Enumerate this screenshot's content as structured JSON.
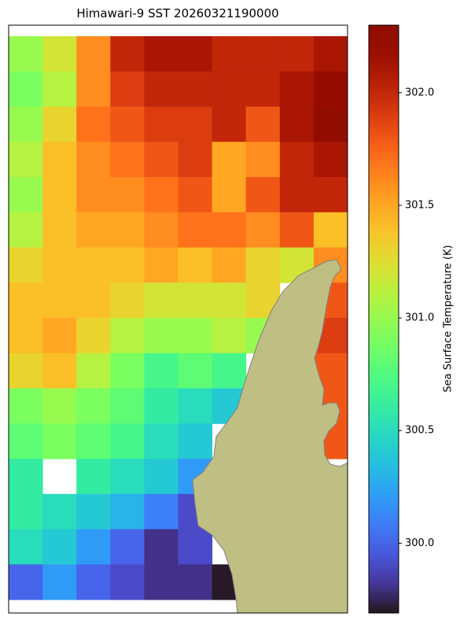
{
  "chart_data": {
    "type": "heatmap",
    "title": "Himawari-9 SST 20260321190000",
    "colorbar_label": "Sea Surface Temperature (K)",
    "colormap": "turbo",
    "clim": [
      299.69,
      302.3
    ],
    "cticks": [
      {
        "value": 300,
        "label": "300.0"
      },
      {
        "value": 300.5,
        "label": "300.5"
      },
      {
        "value": 301,
        "label": "301.0"
      },
      {
        "value": 301.5,
        "label": "301.5"
      },
      {
        "value": 302,
        "label": "302.0"
      }
    ],
    "values": [
      [
        301.0,
        301.2,
        301.6,
        302.0,
        302.1,
        302.1,
        302.0,
        302.0,
        302.0,
        302.1
      ],
      [
        300.9,
        301.1,
        301.6,
        301.9,
        302.0,
        302.0,
        302.0,
        302.0,
        302.1,
        302.2
      ],
      [
        301.0,
        301.3,
        301.7,
        301.8,
        301.9,
        301.9,
        302.0,
        301.8,
        302.1,
        302.3
      ],
      [
        301.1,
        301.4,
        301.6,
        301.7,
        301.8,
        301.9,
        301.5,
        301.6,
        302.0,
        302.1
      ],
      [
        301.0,
        301.4,
        301.6,
        301.6,
        301.7,
        301.8,
        301.5,
        301.8,
        302.0,
        302.0
      ],
      [
        301.1,
        301.4,
        301.5,
        301.5,
        301.6,
        301.7,
        301.7,
        301.6,
        301.8,
        301.4
      ],
      [
        301.3,
        301.4,
        301.4,
        301.4,
        301.5,
        301.4,
        301.5,
        301.3,
        301.2,
        301.6
      ],
      [
        301.4,
        301.4,
        301.4,
        301.3,
        301.2,
        301.2,
        301.2,
        301.3,
        null,
        301.8
      ],
      [
        301.4,
        301.5,
        301.3,
        301.1,
        301.0,
        301.0,
        301.1,
        301.0,
        null,
        301.9
      ],
      [
        301.3,
        301.4,
        301.1,
        300.9,
        300.7,
        300.8,
        300.7,
        null,
        null,
        301.8
      ],
      [
        300.9,
        301.0,
        300.9,
        300.8,
        300.6,
        300.5,
        300.4,
        null,
        null,
        301.8
      ],
      [
        300.8,
        300.9,
        300.8,
        300.7,
        300.5,
        300.4,
        null,
        null,
        null,
        301.8
      ],
      [
        300.6,
        null,
        300.6,
        300.5,
        300.4,
        300.2,
        null,
        null,
        null,
        null
      ],
      [
        300.6,
        300.5,
        300.4,
        300.3,
        300.1,
        299.9,
        null,
        null,
        null,
        null
      ],
      [
        300.5,
        300.4,
        300.2,
        300.0,
        299.8,
        299.9,
        null,
        null,
        null,
        null
      ],
      [
        300.0,
        300.2,
        300.0,
        299.9,
        299.8,
        299.8,
        299.7,
        null,
        null,
        null
      ]
    ]
  }
}
